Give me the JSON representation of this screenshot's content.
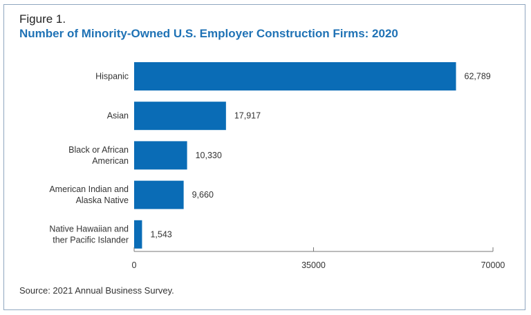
{
  "figure_label": "Figure 1.",
  "source": "Source: 2021 Annual Business Survey.",
  "chart_data": {
    "type": "bar",
    "orientation": "horizontal",
    "title": "Number of Minority-Owned U.S. Employer Construction Firms: 2020",
    "categories": [
      [
        "Hispanic"
      ],
      [
        "Asian"
      ],
      [
        "Black or African",
        "American"
      ],
      [
        "American Indian and",
        "Alaska Native"
      ],
      [
        "Native Hawaiian and",
        "ther Pacific Islander"
      ]
    ],
    "values": [
      62789,
      17917,
      10330,
      9660,
      1543
    ],
    "value_labels": [
      "62,789",
      "17,917",
      "10,330",
      "9,660",
      "1,543"
    ],
    "xlim": [
      0,
      70000
    ],
    "xticks": [
      0,
      35000,
      70000
    ],
    "xtick_labels": [
      "0",
      "35000",
      "70000"
    ],
    "grid": false,
    "bar_color": "#0a6cb6"
  }
}
